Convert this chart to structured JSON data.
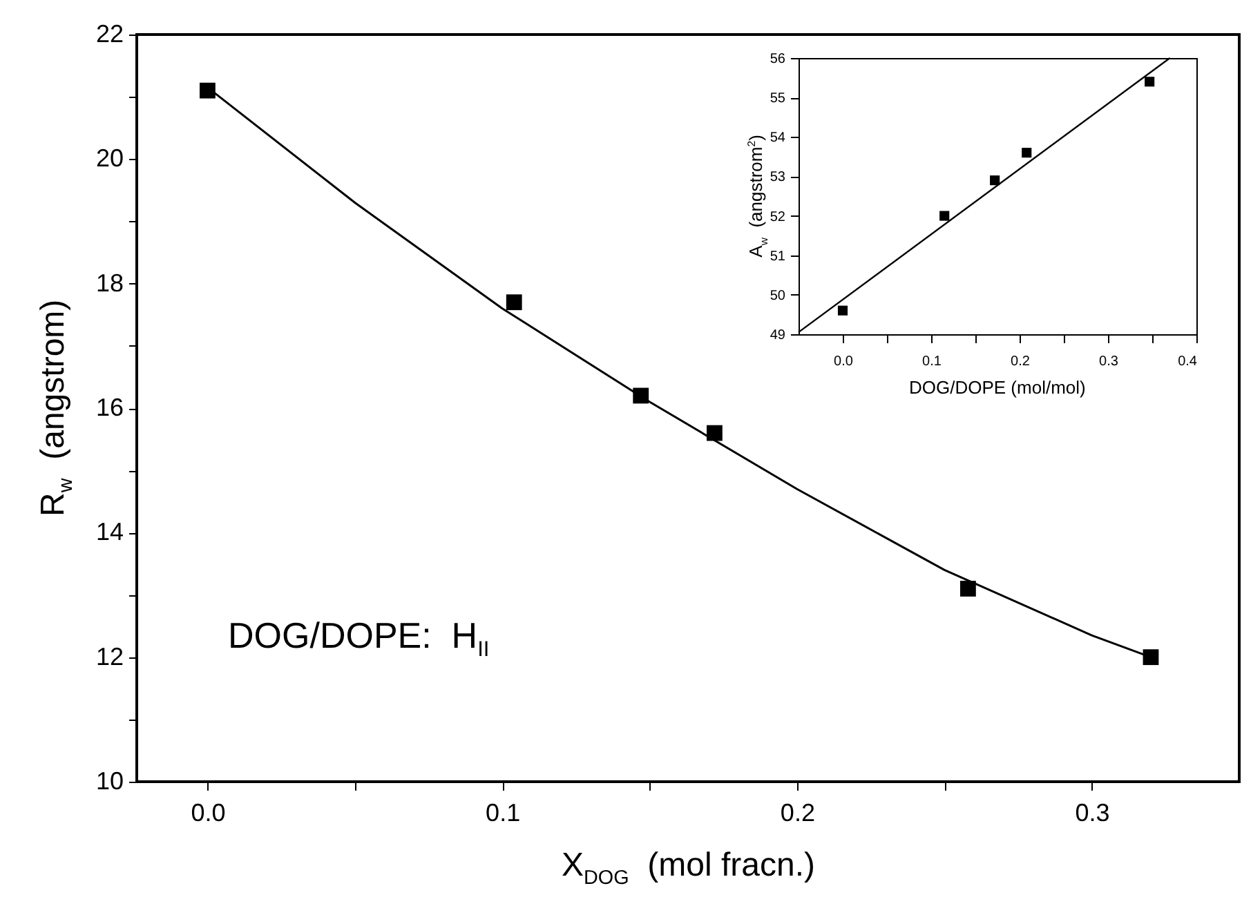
{
  "chart_data": [
    {
      "type": "scatter",
      "xlabel": "X$_{DOG}$  (mol fracn.)",
      "ylabel": "R$_{w}$  (angstrom)",
      "annotations": [
        "DOG/DOPE:  H$_{II}$"
      ],
      "xlim": [
        -0.024,
        0.35
      ],
      "xticks": [
        {
          "value": 0,
          "label": "0.0"
        },
        {
          "value": 0.05,
          "label": null
        },
        {
          "value": 0.1,
          "label": "0.1"
        },
        {
          "value": 0.15,
          "label": null
        },
        {
          "value": 0.2,
          "label": "0.2"
        },
        {
          "value": 0.25,
          "label": null
        },
        {
          "value": 0.3,
          "label": "0.3"
        }
      ],
      "ylim": [
        10,
        22
      ],
      "yticks": [
        10,
        {
          "value": 11,
          "label": null
        },
        12,
        {
          "value": 13,
          "label": null
        },
        14,
        {
          "value": 15,
          "label": null
        },
        16,
        {
          "value": 17,
          "label": null
        },
        18,
        {
          "value": 19,
          "label": null
        },
        20,
        {
          "value": 21,
          "label": null
        },
        22
      ],
      "series": [
        {
          "color": "#000000",
          "marker": "square",
          "x": [
            0,
            0.104,
            0.147,
            0.172,
            0.258,
            0.32
          ],
          "values": [
            21.1,
            17.7,
            16.2,
            15.6,
            13.1,
            12.0
          ]
        },
        {
          "type": "line",
          "color": "#000000",
          "marker": "none",
          "line_style": "solid",
          "x": [
            0,
            0.05,
            0.1,
            0.15,
            0.2,
            0.25,
            0.3,
            0.32
          ],
          "values": [
            21.15,
            19.3,
            17.6,
            16.1,
            14.7,
            13.4,
            12.35,
            12.0
          ]
        }
      ]
    },
    {
      "type": "scatter",
      "xlabel": "DOG/DOPE (mol/mol)",
      "ylabel": "A$_{w}$  (angstrom$^{2}$)",
      "xlim": [
        -0.05,
        0.4
      ],
      "xticks": [
        {
          "value": 0,
          "label": "0.0"
        },
        {
          "value": 0.05,
          "label": null
        },
        {
          "value": 0.1,
          "label": "0.1"
        },
        {
          "value": 0.15,
          "label": null
        },
        {
          "value": 0.2,
          "label": "0.2"
        },
        {
          "value": 0.25,
          "label": null
        },
        {
          "value": 0.3,
          "label": "0.3"
        },
        {
          "value": 0.35,
          "label": null
        },
        {
          "value": 0.4,
          "label": "0.4"
        }
      ],
      "ylim": [
        49,
        56
      ],
      "yticks": [
        49,
        50,
        51,
        52,
        53,
        54,
        55,
        56
      ],
      "series": [
        {
          "color": "#000000",
          "marker": "square",
          "x": [
            0,
            0.115,
            0.172,
            0.208,
            0.347
          ],
          "values": [
            49.6,
            52.0,
            52.9,
            53.6,
            55.4
          ]
        },
        {
          "type": "line",
          "color": "#000000",
          "marker": "none",
          "line_style": "solid",
          "x": [
            -0.05,
            0.37
          ],
          "values": [
            49.05,
            56.0
          ]
        }
      ]
    }
  ]
}
